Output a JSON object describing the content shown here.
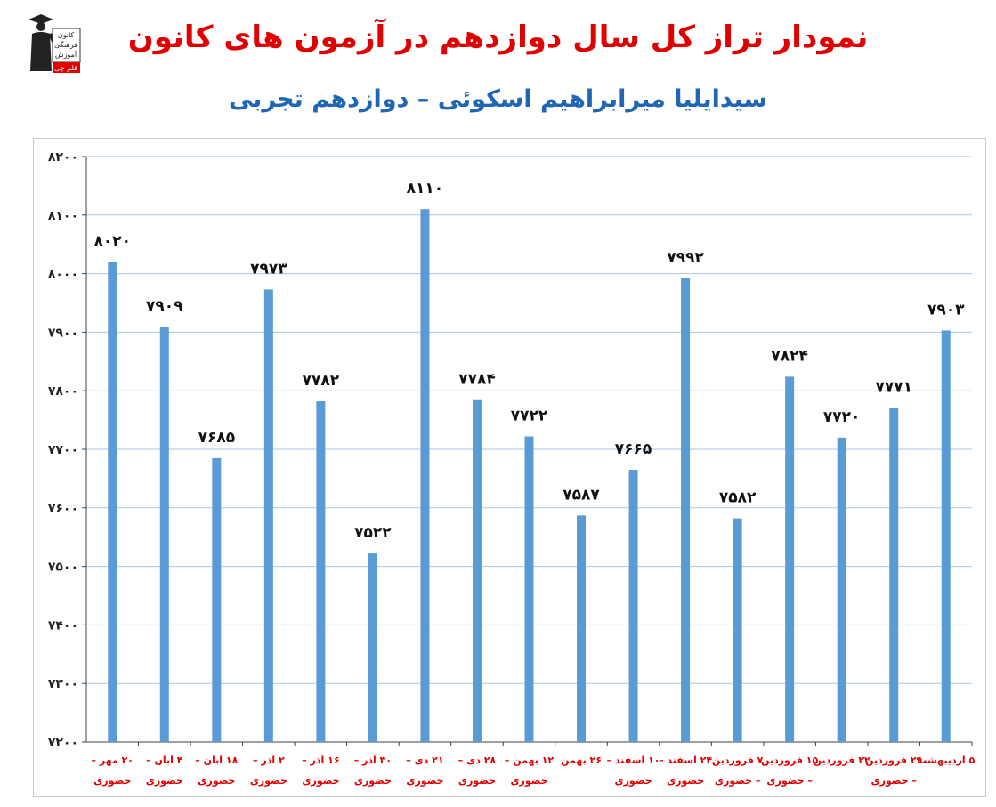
{
  "logo": {
    "lines": [
      "کانون",
      "فرهنگی",
      "آموزش"
    ],
    "badge": "قلم چی",
    "icon": "graduate-figure-logo"
  },
  "header": {
    "title": "نمودار تراز کل سال دوازدهم در آزمون های کانون",
    "subtitle": "سیدایلیا میرابراهیم اسکوئی – دوازدهم تجربی"
  },
  "colors": {
    "title": "#e00000",
    "subtitle": "#1f66b4",
    "bar": "#5b9bd5",
    "category": "#e00000",
    "grid": "#a9c7e6",
    "axis": "#404040"
  },
  "chart_data": {
    "type": "bar",
    "categories": [
      [
        "۲۰ مهر –",
        "حضوری"
      ],
      [
        "۴ آبان –",
        "حضوری"
      ],
      [
        "۱۸ آبان –",
        "حضوری"
      ],
      [
        "۲ آذر –",
        "حضوری"
      ],
      [
        "۱۶ آذر –",
        "حضوری"
      ],
      [
        "۳۰ آذر –",
        "حضوری"
      ],
      [
        "۲۱ دی –",
        "حضوری"
      ],
      [
        "۲۸ دی –",
        "حضوری"
      ],
      [
        "۱۲ بهمن –",
        "حضوری"
      ],
      [
        "۲۶ بهمن",
        ""
      ],
      [
        "۱۰ اسفند –",
        "حضوری"
      ],
      [
        "۲۴ اسفند –",
        "حضوری"
      ],
      [
        "۷ فروردین",
        "– حضوری"
      ],
      [
        "۱۵ فروردین",
        "– حضوری"
      ],
      [
        "۲۲ فروردین",
        ""
      ],
      [
        "۲۹ فروردین",
        "– حضوری"
      ],
      [
        "۵ اردیبهشت",
        ""
      ]
    ],
    "values": [
      8020,
      7909,
      7685,
      7973,
      7782,
      7522,
      8110,
      7784,
      7722,
      7587,
      7665,
      7992,
      7582,
      7824,
      7720,
      7771,
      7903
    ],
    "value_labels": [
      "۸۰۲۰",
      "۷۹۰۹",
      "۷۶۸۵",
      "۷۹۷۳",
      "۷۷۸۲",
      "۷۵۲۲",
      "۸۱۱۰",
      "۷۷۸۴",
      "۷۷۲۲",
      "۷۵۸۷",
      "۷۶۶۵",
      "۷۹۹۲",
      "۷۵۸۲",
      "۷۸۲۴",
      "۷۷۲۰",
      "۷۷۷۱",
      "۷۹۰۳"
    ],
    "yticks": [
      7200,
      7300,
      7400,
      7500,
      7600,
      7700,
      7800,
      7900,
      8000,
      8100,
      8200
    ],
    "ytick_labels": [
      "۷۲۰۰",
      "۷۳۰۰",
      "۷۴۰۰",
      "۷۵۰۰",
      "۷۶۰۰",
      "۷۷۰۰",
      "۷۸۰۰",
      "۷۹۰۰",
      "۸۰۰۰",
      "۸۱۰۰",
      "۸۲۰۰"
    ],
    "ylim": [
      7200,
      8200
    ],
    "grid": true,
    "legend": false,
    "title": "نمودار تراز کل سال دوازدهم در آزمون های کانون",
    "xlabel": "",
    "ylabel": ""
  }
}
